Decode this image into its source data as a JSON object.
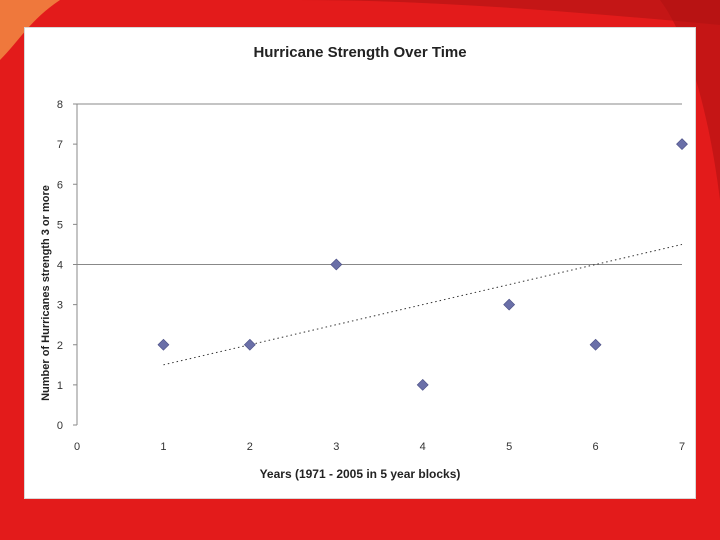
{
  "chart_data": {
    "type": "scatter",
    "title": "Hurricane Strength Over Time",
    "xlabel": "Years (1971 - 2005 in 5 year blocks)",
    "ylabel": "Number of Hurricanes strength 3 or more",
    "xlim": [
      0,
      7
    ],
    "ylim": [
      0,
      8
    ],
    "x_ticks": [
      0,
      1,
      2,
      3,
      4,
      5,
      6,
      7
    ],
    "y_ticks": [
      0,
      1,
      2,
      3,
      4,
      5,
      6,
      7,
      8
    ],
    "grid": "horizontal at 4 and 8",
    "points": [
      {
        "x": 1,
        "y": 2
      },
      {
        "x": 2,
        "y": 2
      },
      {
        "x": 3,
        "y": 4
      },
      {
        "x": 4,
        "y": 1
      },
      {
        "x": 5,
        "y": 3
      },
      {
        "x": 6,
        "y": 2
      },
      {
        "x": 7,
        "y": 7
      }
    ],
    "trendline": {
      "type": "linear",
      "x": [
        1,
        7
      ],
      "y": [
        1.5,
        4.5
      ]
    },
    "marker_color": "#6a6fa8",
    "axis_color": "#888888"
  }
}
